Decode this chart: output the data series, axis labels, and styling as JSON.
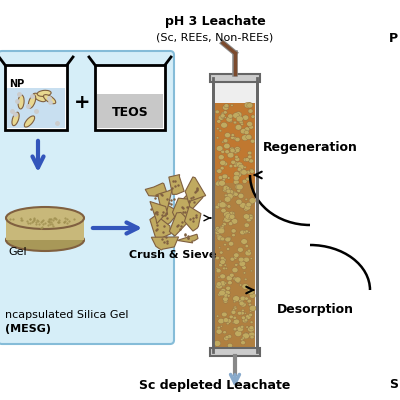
{
  "background_color": "#ffffff",
  "box_color": "#d6eef8",
  "box_border_color": "#85bcd8",
  "np_fill": "#c8dff0",
  "teos_fill": "#c8c8c8",
  "gel_color_top": "#c8b87a",
  "gel_color_bot": "#a89858",
  "arrow_blue": "#3355bb",
  "arrow_light_blue": "#88aacc",
  "column_glass": "#e8e8e8",
  "column_orange_top": "#c07830",
  "column_orange_grad": "#d89050",
  "column_brown": "#a07840",
  "particle_face": "#c0aa60",
  "particle_edge": "#806040",
  "tube_brown": "#7b4a2d",
  "tube_gray": "#666666",
  "label_ph": "pH 3 Leachate",
  "label_ph2": "(Sc, REEs, Non-REEs)",
  "label_regen": "Regeneration",
  "label_desorp": "Desorption",
  "label_sc_dep": "Sc depleted Leachate",
  "label_np": "NP",
  "label_teos": "TEOS",
  "label_gel": "Gel",
  "label_crush": "Crush & Sieve",
  "label_mesg1": "ncapsulated Silica Gel",
  "label_mesg2": "(MESG)",
  "label_sc": "S",
  "label_p": "P"
}
